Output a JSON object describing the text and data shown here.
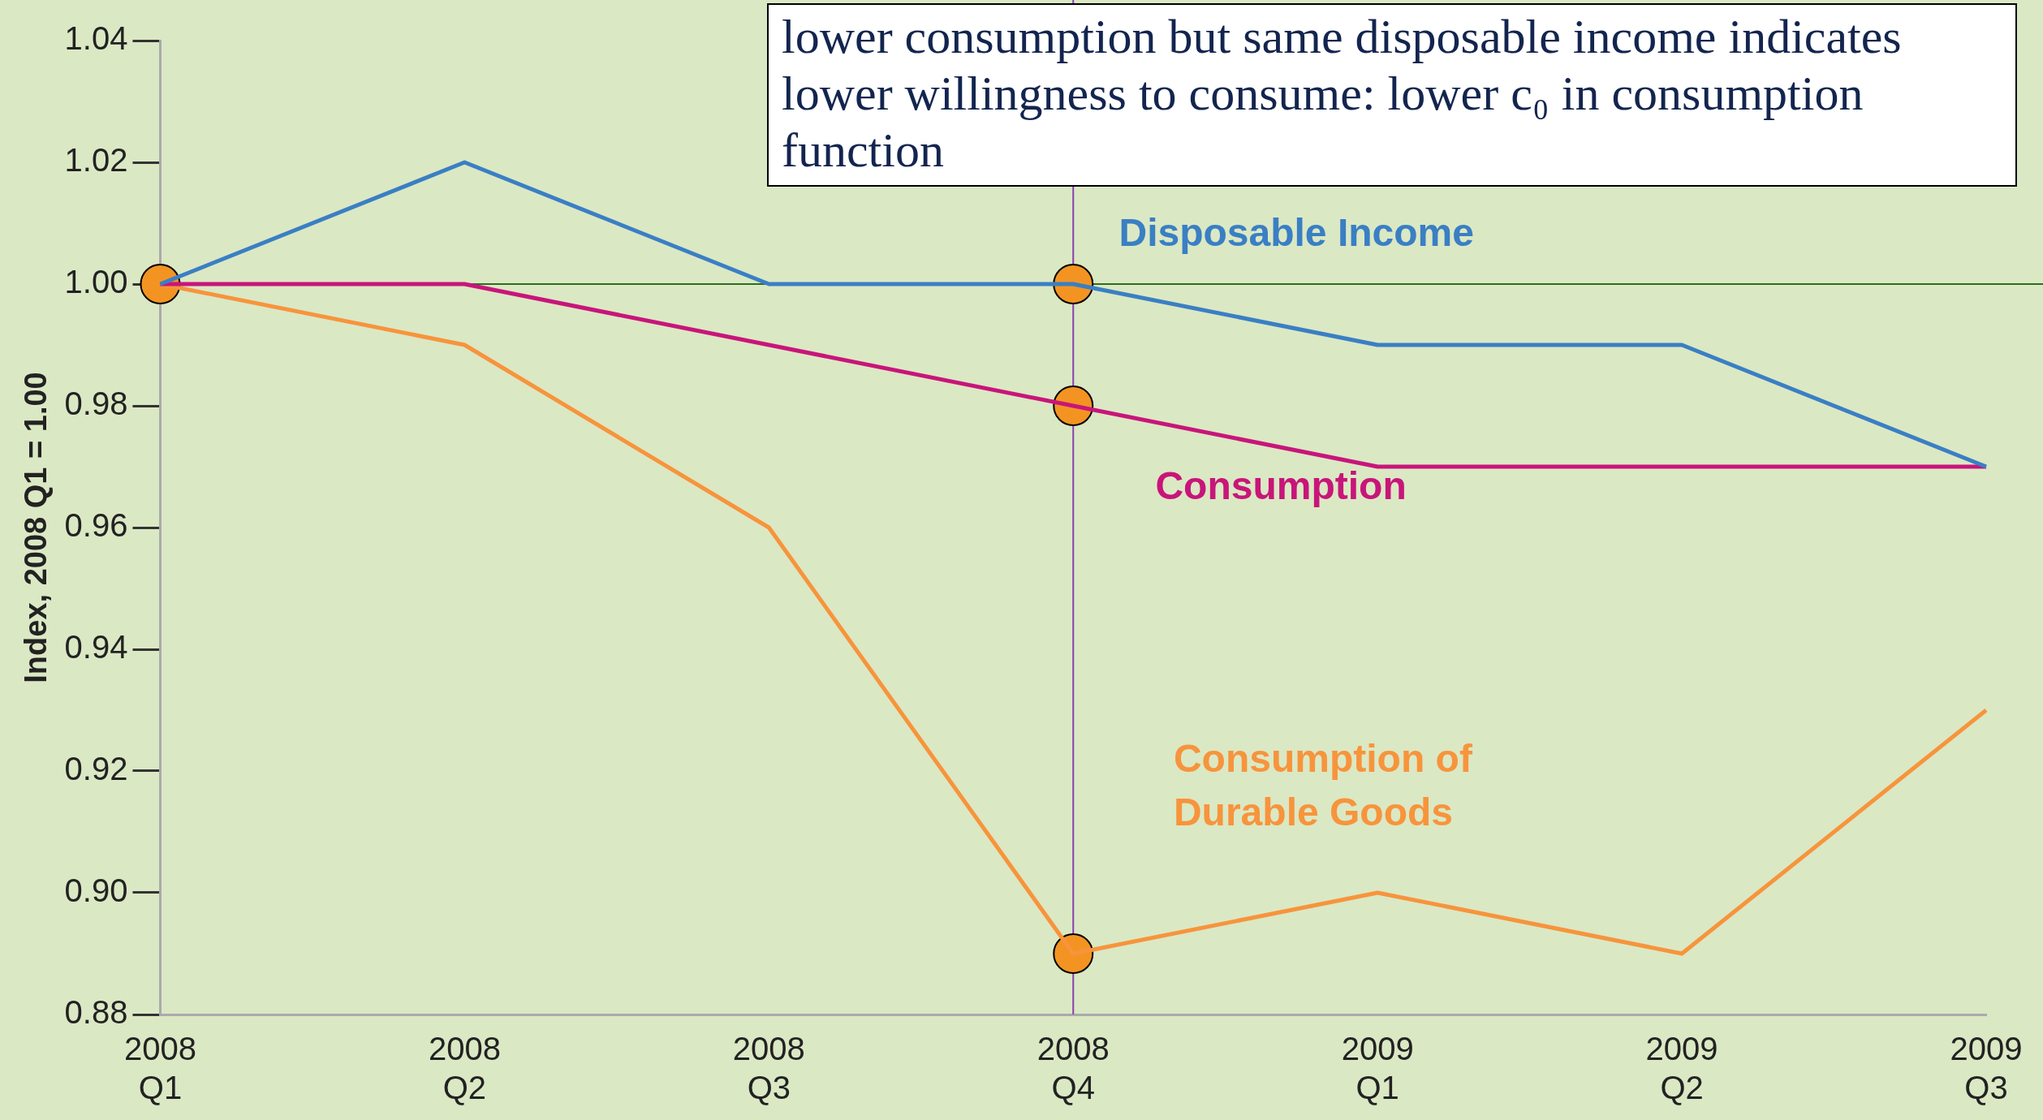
{
  "chart_data": {
    "type": "line",
    "ylabel": "Index, 2008 Q1 = 1.00",
    "categories": [
      "2008 Q1",
      "2008 Q2",
      "2008 Q3",
      "2008 Q4",
      "2009 Q1",
      "2009 Q2",
      "2009 Q3"
    ],
    "series": [
      {
        "name": "Disposable Income",
        "color": "#3a7fc4",
        "values": [
          1.0,
          1.02,
          1.0,
          1.0,
          0.99,
          0.99,
          0.97
        ]
      },
      {
        "name": "Consumption",
        "color": "#c8157a",
        "values": [
          1.0,
          1.0,
          0.99,
          0.98,
          0.97,
          0.97,
          0.97
        ]
      },
      {
        "name": "Consumption of Durable Goods",
        "color": "#f7943c",
        "values": [
          1.0,
          0.99,
          0.96,
          0.89,
          0.9,
          0.89,
          0.93
        ]
      },
      {
        "type": "scatter",
        "color": "#f39422",
        "marker": "circle",
        "x": [
          "2008 Q1",
          "2008 Q4",
          "2008 Q4",
          "2008 Q4"
        ],
        "values": [
          1.0,
          1.0,
          0.98,
          0.89
        ]
      }
    ],
    "ylim": [
      0.88,
      1.04
    ],
    "yticks": [
      0.88,
      {
        "value": 0.9,
        "label": "0.90"
      },
      0.92,
      0.94,
      0.96,
      0.98,
      {
        "value": 1,
        "label": "1.00"
      },
      1.02,
      1.04
    ],
    "ref_lines": [
      {
        "axis": "y",
        "value": 1,
        "color": "#2d6e1e"
      },
      {
        "axis": "x",
        "value": "2008 Q4",
        "color": "#8a3fb0"
      }
    ],
    "grid": false,
    "legend": false,
    "marker": "none",
    "line_style": "solid",
    "annotations": [
      "lower consumption but same disposable income indicates lower willingness to consume: lower c₀ in consumption function"
    ]
  }
}
